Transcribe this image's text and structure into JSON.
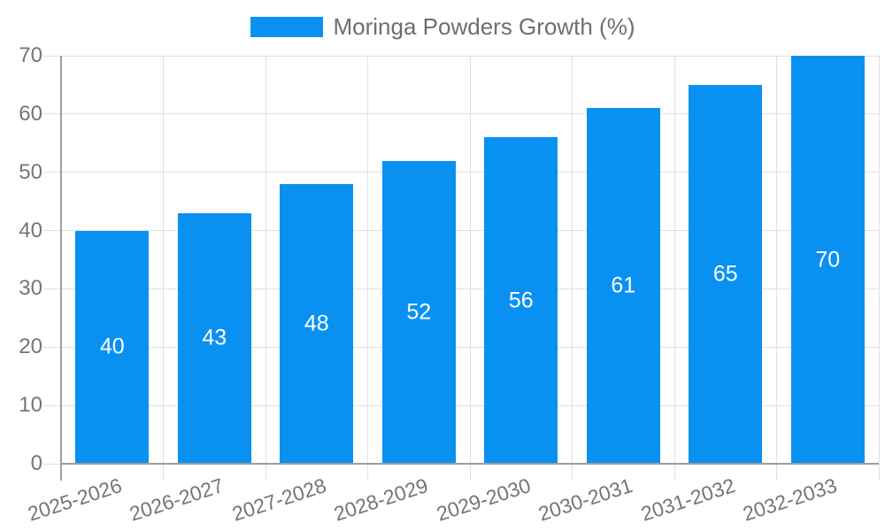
{
  "chart_data": {
    "type": "bar",
    "title": "",
    "series_name": "Moringa Powders Growth (%)",
    "categories": [
      "2025-2026",
      "2026-2027",
      "2027-2028",
      "2028-2029",
      "2029-2030",
      "2030-2031",
      "2031-2032",
      "2032-2033"
    ],
    "values": [
      40,
      43,
      48,
      52,
      56,
      61,
      65,
      70
    ],
    "xlabel": "",
    "ylabel": "",
    "ylim": [
      0,
      70
    ],
    "yticks": [
      0,
      10,
      20,
      30,
      40,
      50,
      60,
      70
    ],
    "grid": true,
    "legend_position": "top-center",
    "value_label_position": "inside-center",
    "x_label_rotation_deg": -18,
    "colors": {
      "bar": "#0991F2",
      "value_label": "#FFFFFF",
      "axis_text": "#757575",
      "legend_text": "#6E6E6E",
      "grid_line": "#E0E0E0",
      "axis_line": "#9E9E9E",
      "background": "#FFFFFF"
    }
  }
}
